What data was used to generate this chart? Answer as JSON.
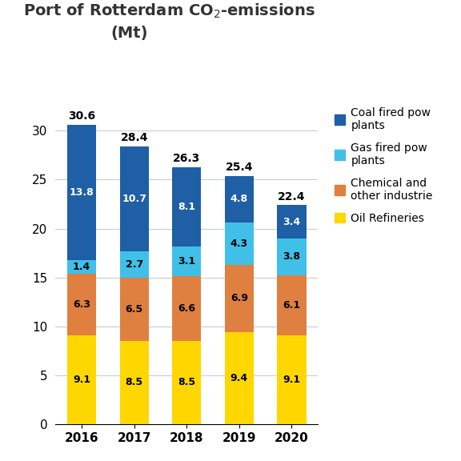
{
  "years": [
    "2016",
    "2017",
    "2018",
    "2019",
    "2020"
  ],
  "oil_refineries": [
    9.1,
    8.5,
    8.5,
    9.4,
    9.1
  ],
  "chemical_other": [
    6.3,
    6.5,
    6.6,
    6.9,
    6.1
  ],
  "gas_fired_power": [
    1.4,
    2.7,
    3.1,
    4.3,
    3.8
  ],
  "coal_fired_power": [
    13.8,
    10.7,
    8.1,
    4.8,
    3.4
  ],
  "totals": [
    30.6,
    28.4,
    26.3,
    25.4,
    22.4
  ],
  "color_oil": "#FFD700",
  "color_chemical": "#E08040",
  "color_gas": "#40C0E8",
  "color_coal": "#1F5FA6",
  "ylim": [
    0,
    33
  ],
  "yticks": [
    0,
    5,
    10,
    15,
    20,
    25,
    30
  ],
  "bar_width": 0.55,
  "background_color": "#ffffff",
  "title_fontsize": 14,
  "label_fontsize": 9,
  "total_fontsize": 10,
  "tick_fontsize": 11,
  "legend_fontsize": 10
}
